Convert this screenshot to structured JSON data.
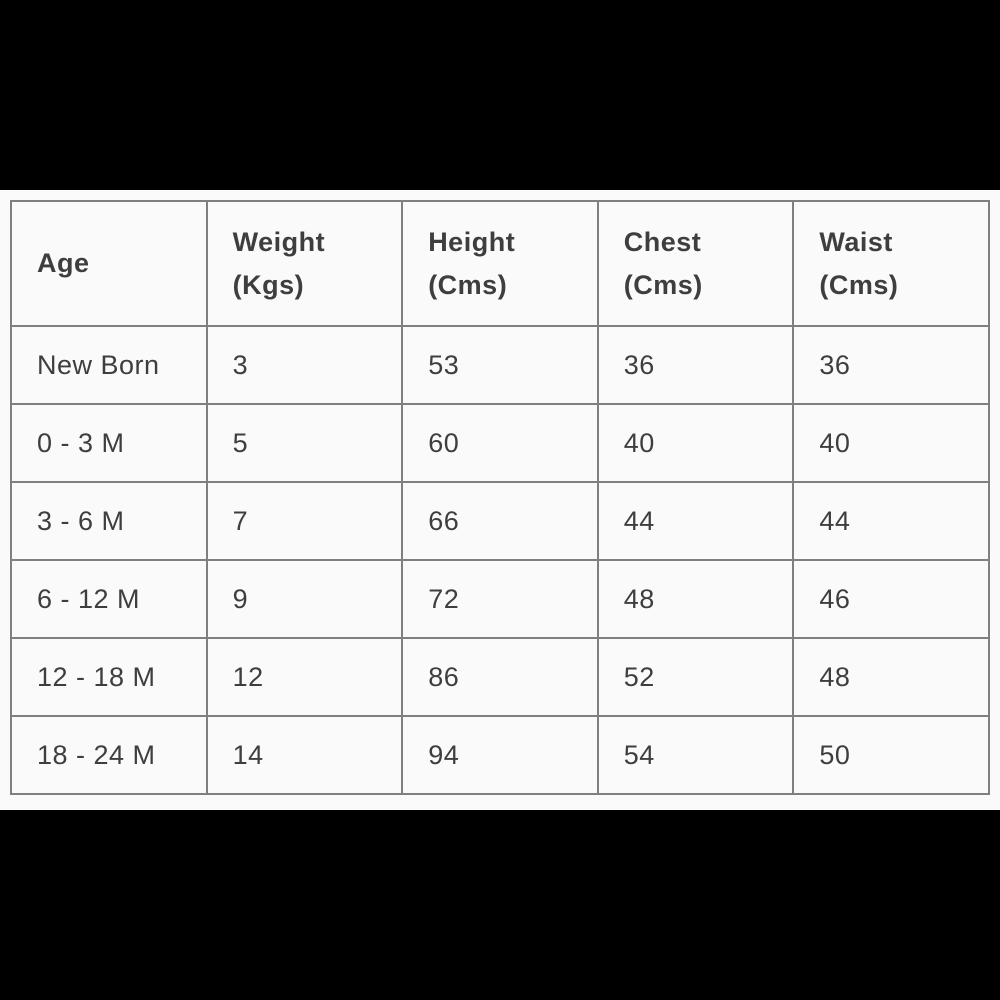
{
  "colors": {
    "letterbox": "#000000",
    "content_background": "#fafafa",
    "border": "#7f7f7f",
    "text": "#3e3e3e"
  },
  "table": {
    "columns": [
      {
        "label": "Age",
        "sublabel": ""
      },
      {
        "label": "Weight",
        "sublabel": "(Kgs)"
      },
      {
        "label": "Height",
        "sublabel": "(Cms)"
      },
      {
        "label": "Chest",
        "sublabel": "(Cms)"
      },
      {
        "label": "Waist",
        "sublabel": "(Cms)"
      }
    ],
    "rows": [
      {
        "cells": [
          "New Born",
          "3",
          "53",
          "36",
          "36"
        ]
      },
      {
        "cells": [
          "0 - 3 M",
          "5",
          "60",
          "40",
          "40"
        ]
      },
      {
        "cells": [
          "3 - 6 M",
          "7",
          "66",
          "44",
          "44"
        ]
      },
      {
        "cells": [
          "6 - 12 M",
          "9",
          "72",
          "48",
          "46"
        ]
      },
      {
        "cells": [
          "12 - 18 M",
          "12",
          "86",
          "52",
          "48"
        ]
      },
      {
        "cells": [
          "18 - 24 M",
          "14",
          "94",
          "54",
          "50"
        ]
      }
    ]
  },
  "chart_data": {
    "type": "table",
    "columns": [
      "Age",
      "Weight (Kgs)",
      "Height (Cms)",
      "Chest (Cms)",
      "Waist (Cms)"
    ],
    "rows": [
      [
        "New Born",
        3,
        53,
        36,
        36
      ],
      [
        "0 - 3 M",
        5,
        60,
        40,
        40
      ],
      [
        "3 - 6 M",
        7,
        66,
        44,
        44
      ],
      [
        "6 - 12 M",
        9,
        72,
        48,
        46
      ],
      [
        "12 - 18 M",
        12,
        86,
        52,
        48
      ],
      [
        "18 - 24 M",
        14,
        94,
        54,
        50
      ]
    ]
  }
}
